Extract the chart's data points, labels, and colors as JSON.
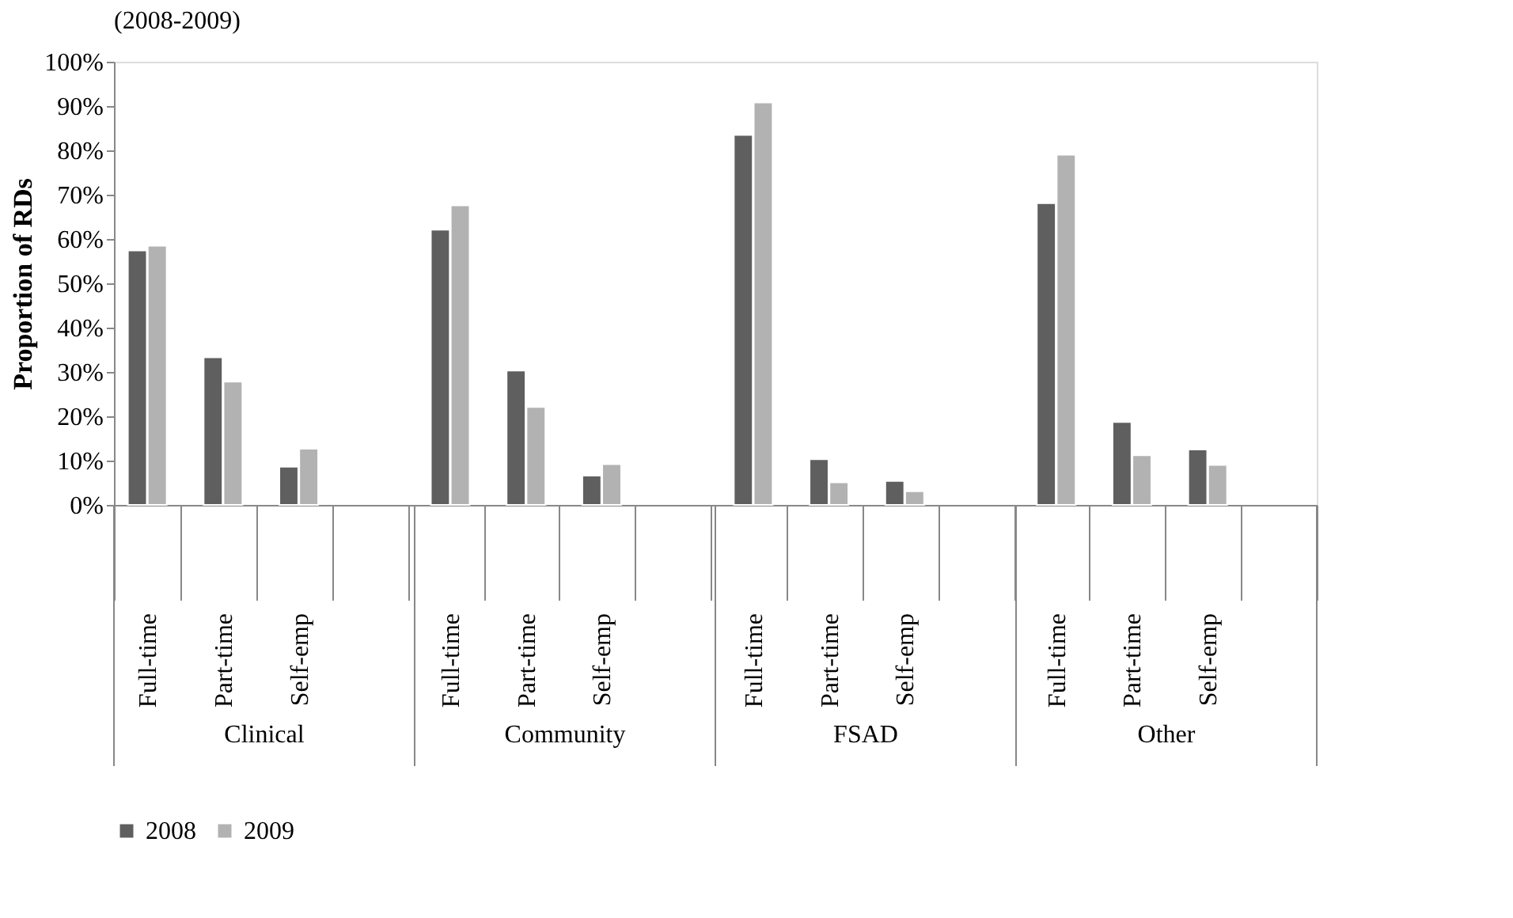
{
  "chart_data": {
    "type": "bar",
    "title": "(2008-2009)",
    "ylabel": "Proportion of RDs",
    "categories": [
      "Full-time",
      "Part-time",
      "Self-emp",
      null,
      "Full-time",
      "Part-time",
      "Self-emp",
      null,
      "Full-time",
      "Part-time",
      "Self-emp",
      null,
      "Full-time",
      "Part-time",
      "Self-emp"
    ],
    "annotations": [
      "Clinical",
      "Community",
      "FSAD",
      "Other"
    ],
    "series": [
      {
        "name": "2008",
        "color": "#5f5f5f",
        "values": [
          57.4,
          33.3,
          8.6,
          null,
          62.1,
          30.3,
          6.6,
          null,
          83.5,
          10.3,
          5.4,
          null,
          68.1,
          18.7,
          12.5
        ]
      },
      {
        "name": "2009",
        "color": "#b2b2b2",
        "values": [
          58.5,
          27.8,
          12.7,
          null,
          67.6,
          22.1,
          9.2,
          null,
          90.8,
          5.1,
          3.1,
          null,
          79.0,
          11.2,
          9.0
        ]
      }
    ],
    "ylim": [
      0,
      100
    ],
    "yticks": [
      {
        "value": 0,
        "label": "0%"
      },
      {
        "value": 10,
        "label": "10%"
      },
      {
        "value": 20,
        "label": "20%"
      },
      {
        "value": 30,
        "label": "30%"
      },
      {
        "value": 40,
        "label": "40%"
      },
      {
        "value": 50,
        "label": "50%"
      },
      {
        "value": 60,
        "label": "60%"
      },
      {
        "value": 70,
        "label": "70%"
      },
      {
        "value": 80,
        "label": "80%"
      },
      {
        "value": 90,
        "label": "90%"
      },
      {
        "value": 100,
        "label": "100%"
      }
    ],
    "legend": "bottom",
    "grid": false
  }
}
